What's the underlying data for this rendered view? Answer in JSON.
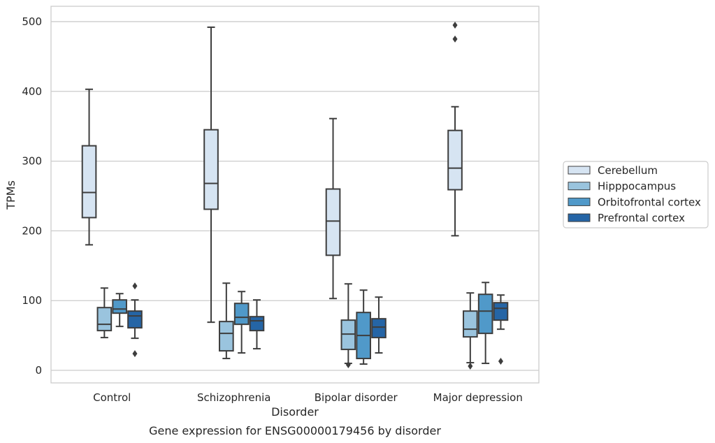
{
  "chart_data": {
    "type": "box",
    "title": "",
    "caption": "Gene expression for ENSG00000179456 by disorder",
    "xlabel": "Disorder",
    "ylabel": "TPMs",
    "ylim": [
      -18,
      522
    ],
    "yticks": [
      0,
      100,
      200,
      300,
      400,
      500
    ],
    "grid": "horizontal",
    "legend_position": "right",
    "categories": [
      "Control",
      "Schizophrenia",
      "Bipolar disorder",
      "Major depression"
    ],
    "series": [
      {
        "name": "Cerebellum",
        "color": "#d6e4f2",
        "boxes": [
          {
            "min": 180,
            "q1": 219,
            "median": 255,
            "q3": 322,
            "max": 403,
            "outliers": []
          },
          {
            "min": 69,
            "q1": 231,
            "median": 268,
            "q3": 345,
            "max": 492,
            "outliers": []
          },
          {
            "min": 103,
            "q1": 165,
            "median": 214,
            "q3": 260,
            "max": 361,
            "outliers": []
          },
          {
            "min": 193,
            "q1": 259,
            "median": 290,
            "q3": 344,
            "max": 378,
            "outliers": [
              475,
              495
            ]
          }
        ]
      },
      {
        "name": "Hipppocampus",
        "color": "#9ac4de",
        "boxes": [
          {
            "min": 47,
            "q1": 57,
            "median": 66,
            "q3": 90,
            "max": 118,
            "outliers": []
          },
          {
            "min": 17,
            "q1": 28,
            "median": 53,
            "q3": 70,
            "max": 125,
            "outliers": []
          },
          {
            "min": 10,
            "q1": 30,
            "median": 52,
            "q3": 72,
            "max": 124,
            "outliers": [
              8
            ]
          },
          {
            "min": 11,
            "q1": 48,
            "median": 59,
            "q3": 85,
            "max": 111,
            "outliers": [
              6
            ]
          }
        ]
      },
      {
        "name": "Orbitofrontal cortex",
        "color": "#5099c9",
        "boxes": [
          {
            "min": 63,
            "q1": 82,
            "median": 88,
            "q3": 101,
            "max": 110,
            "outliers": []
          },
          {
            "min": 25,
            "q1": 66,
            "median": 76,
            "q3": 96,
            "max": 113,
            "outliers": []
          },
          {
            "min": 9,
            "q1": 17,
            "median": 50,
            "q3": 83,
            "max": 115,
            "outliers": []
          },
          {
            "min": 10,
            "q1": 53,
            "median": 85,
            "q3": 109,
            "max": 126,
            "outliers": []
          }
        ]
      },
      {
        "name": "Prefrontal cortex",
        "color": "#2565a6",
        "boxes": [
          {
            "min": 46,
            "q1": 61,
            "median": 78,
            "q3": 85,
            "max": 101,
            "outliers": [
              24,
              121
            ]
          },
          {
            "min": 31,
            "q1": 57,
            "median": 71,
            "q3": 77,
            "max": 101,
            "outliers": []
          },
          {
            "min": 25,
            "q1": 47,
            "median": 62,
            "q3": 74,
            "max": 105,
            "outliers": []
          },
          {
            "min": 59,
            "q1": 72,
            "median": 89,
            "q3": 97,
            "max": 108,
            "outliers": [
              13
            ]
          }
        ]
      }
    ]
  }
}
